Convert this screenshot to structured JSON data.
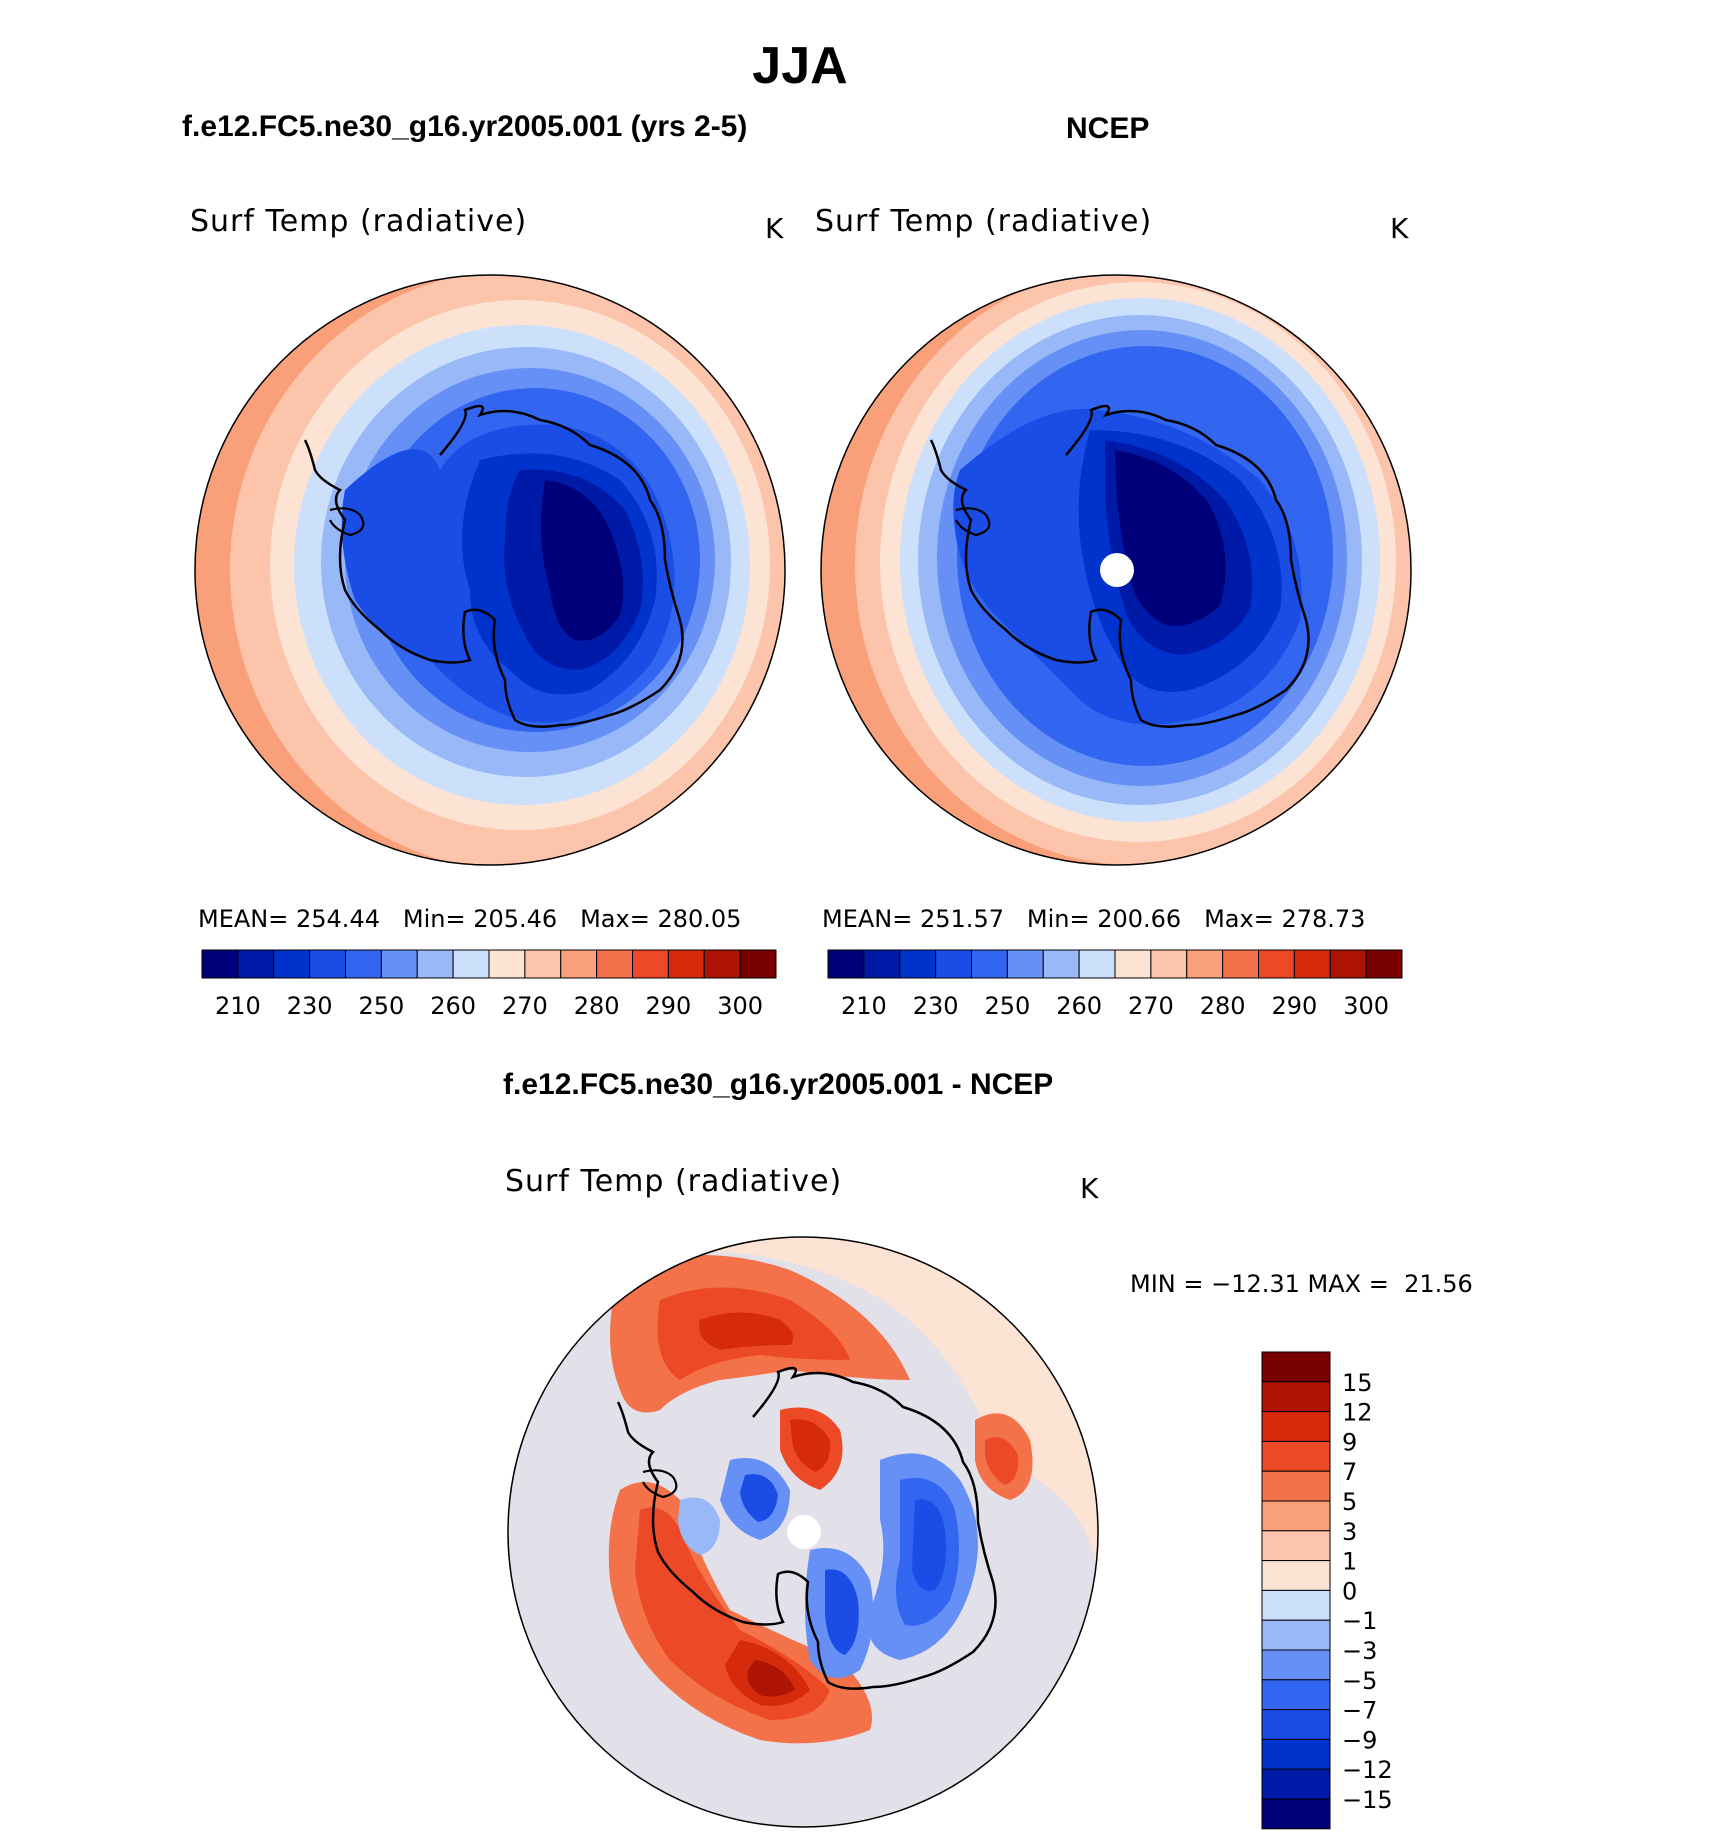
{
  "page_title": "JJA",
  "panels": [
    {
      "heading": "f.e12.FC5.ne30_g16.yr2005.001 (yrs 2-5)",
      "field": "Surf Temp (radiative)",
      "units": "K",
      "stats": {
        "mean_label": "MEAN=",
        "mean": "254.44",
        "min_label": "Min=",
        "min": "205.46",
        "max_label": "Max=",
        "max": "280.05"
      }
    },
    {
      "heading": "NCEP",
      "field": "Surf Temp (radiative)",
      "units": "K",
      "stats": {
        "mean_label": "MEAN=",
        "mean": "251.57",
        "min_label": "Min=",
        "min": "200.66",
        "max_label": "Max=",
        "max": "278.73"
      }
    }
  ],
  "abs_colorbar": {
    "colors": [
      "#00007a",
      "#001aa8",
      "#0033cc",
      "#1a4de6",
      "#3366f0",
      "#6690f5",
      "#99b8f8",
      "#cce0fb",
      "#fde3d4",
      "#fcc4aa",
      "#f9a07a",
      "#f3724a",
      "#ec4a26",
      "#d52b0c",
      "#ad1405",
      "#7a0000"
    ],
    "tick_labels": [
      "210",
      "230",
      "250",
      "260",
      "270",
      "280",
      "290",
      "300"
    ]
  },
  "diff_panel": {
    "heading": "f.e12.FC5.ne30_g16.yr2005.001 - NCEP",
    "field": "Surf Temp (radiative)",
    "units": "K",
    "minmax_text": "MIN = −12.31 MAX =  21.56"
  },
  "diff_colorbar": {
    "colors": [
      "#7a0000",
      "#ad1405",
      "#d52b0c",
      "#ec4a26",
      "#f3724a",
      "#f9a07a",
      "#fcc4aa",
      "#fde3d4",
      "#cce0fb",
      "#99b8f8",
      "#6690f5",
      "#3366f0",
      "#1a4de6",
      "#0033cc",
      "#001aa8",
      "#00007a"
    ],
    "tick_labels": [
      "15",
      "12",
      "9",
      "7",
      "5",
      "3",
      "1",
      "0",
      "−1",
      "−3",
      "−5",
      "−7",
      "−9",
      "−12",
      "−15"
    ]
  }
}
